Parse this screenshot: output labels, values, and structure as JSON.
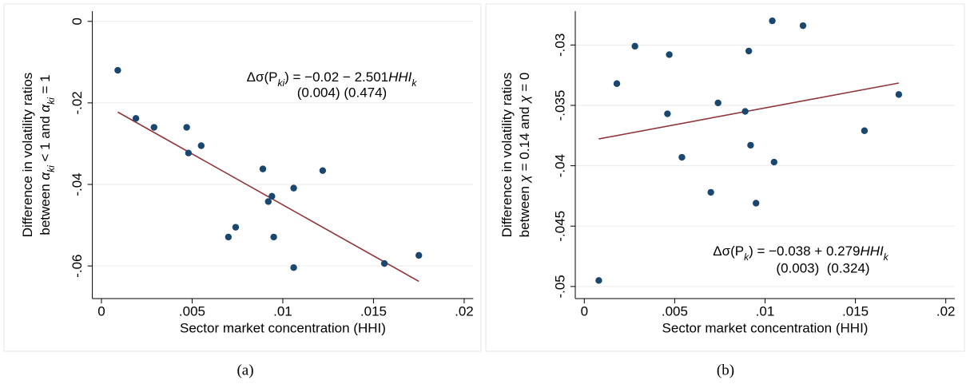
{
  "chart_data": [
    {
      "type": "scatter",
      "caption": "(a)",
      "x_label": "Sector market concentration (HHI)",
      "y_label": [
        [
          {
            "text": "Difference in volatility ratios"
          }
        ],
        [
          {
            "text": "between "
          },
          {
            "text": "α",
            "style": "italic"
          },
          {
            "text": "ki",
            "style": "sub"
          },
          {
            "text": " < 1 and "
          },
          {
            "text": "α",
            "style": "italic"
          },
          {
            "text": "ki",
            "style": "sub"
          },
          {
            "text": " = 1"
          }
        ]
      ],
      "annotation": {
        "equation": [
          {
            "text": "Δσ(P"
          },
          {
            "text": "ki",
            "style": "sub"
          },
          {
            "text": ") = −0.02 − 2.501"
          },
          {
            "text": "HHI",
            "style": "italic"
          },
          {
            "text": "k",
            "style": "sub"
          }
        ],
        "std_errors": "(0.004) (0.474)"
      },
      "x": [
        0.0009,
        0.0019,
        0.0029,
        0.0047,
        0.0048,
        0.0055,
        0.0089,
        0.0092,
        0.0094,
        0.007,
        0.0074,
        0.0095,
        0.0106,
        0.0106,
        0.0122,
        0.0156,
        0.0175
      ],
      "values": [
        -0.012,
        -0.0238,
        -0.026,
        -0.026,
        -0.0323,
        -0.0305,
        -0.0362,
        -0.0442,
        -0.0429,
        -0.0529,
        -0.0505,
        -0.0529,
        -0.0409,
        -0.0604,
        -0.0366,
        -0.0594,
        -0.0574
      ],
      "color": "#1a476f",
      "fit": {
        "x": [
          0.0009,
          0.0175
        ],
        "values": [
          -0.02225,
          -0.06377
        ],
        "color": "#90353b"
      },
      "xlim": [
        -0.0005,
        0.0205
      ],
      "xticks": [
        0,
        {
          "value": 0.005,
          "label": ".005"
        },
        {
          "value": 0.01,
          "label": ".01"
        },
        {
          "value": 0.015,
          "label": ".015"
        },
        {
          "value": 0.02,
          "label": ".02"
        }
      ],
      "ylim": [
        -0.068,
        0.0025
      ],
      "yticks": [
        0,
        {
          "value": -0.02,
          "label": "-.02"
        },
        {
          "value": -0.04,
          "label": "-.04"
        },
        {
          "value": -0.06,
          "label": "-.06"
        }
      ],
      "grid": true
    },
    {
      "type": "scatter",
      "caption": "(b)",
      "x_label": "Sector market concentration (HHI)",
      "y_label": [
        [
          {
            "text": "Difference in volatility ratios"
          }
        ],
        [
          {
            "text": "between "
          },
          {
            "text": "χ",
            "style": "italic"
          },
          {
            "text": " = 0.14 and "
          },
          {
            "text": "χ",
            "style": "italic"
          },
          {
            "text": " = 0"
          }
        ]
      ],
      "annotation": {
        "equation": [
          {
            "text": "Δσ(P"
          },
          {
            "text": "k",
            "style": "sub"
          },
          {
            "text": ") = −0.038 + 0.279"
          },
          {
            "text": "HHI",
            "style": "italic"
          },
          {
            "text": "k",
            "style": "sub"
          }
        ],
        "std_errors": "(0.003)  (0.324)"
      },
      "x": [
        0.0008,
        0.0018,
        0.0028,
        0.0047,
        0.0046,
        0.0054,
        0.007,
        0.0074,
        0.0089,
        0.0091,
        0.0092,
        0.0095,
        0.0104,
        0.0105,
        0.0121,
        0.0155,
        0.0174
      ],
      "values": [
        -0.0495,
        -0.0332,
        -0.0301,
        -0.0308,
        -0.0357,
        -0.0393,
        -0.0422,
        -0.0348,
        -0.0355,
        -0.0305,
        -0.0383,
        -0.0431,
        -0.028,
        -0.0397,
        -0.0284,
        -0.0371,
        -0.0341
      ],
      "color": "#1a476f",
      "fit": {
        "x": [
          0.0008,
          0.0174
        ],
        "values": [
          -0.03778,
          -0.03315
        ],
        "color": "#90353b"
      },
      "xlim": [
        -0.0005,
        0.0205
      ],
      "xticks": [
        0,
        {
          "value": 0.005,
          "label": ".005"
        },
        {
          "value": 0.01,
          "label": ".01"
        },
        {
          "value": 0.015,
          "label": ".015"
        },
        {
          "value": 0.02,
          "label": ".02"
        }
      ],
      "ylim": [
        -0.051,
        -0.0272
      ],
      "yticks": [
        {
          "value": -0.03,
          "label": "-.03"
        },
        {
          "value": -0.035,
          "label": "-.035"
        },
        {
          "value": -0.04,
          "label": "-.04"
        },
        {
          "value": -0.045,
          "label": "-.045"
        },
        {
          "value": -0.05,
          "label": "-.05"
        }
      ],
      "grid": true
    }
  ]
}
